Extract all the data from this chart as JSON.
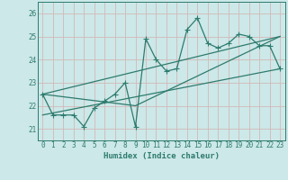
{
  "xlabel": "Humidex (Indice chaleur)",
  "xlim": [
    -0.5,
    23.5
  ],
  "ylim": [
    20.5,
    26.5
  ],
  "xticks": [
    0,
    1,
    2,
    3,
    4,
    5,
    6,
    7,
    8,
    9,
    10,
    11,
    12,
    13,
    14,
    15,
    16,
    17,
    18,
    19,
    20,
    21,
    22,
    23
  ],
  "yticks": [
    21,
    22,
    23,
    24,
    25,
    26
  ],
  "background_color": "#cce8e8",
  "grid_color": "#d4b8b8",
  "line_color": "#2e7b6e",
  "series1_x": [
    0,
    1,
    2,
    3,
    4,
    5,
    6,
    7,
    8,
    9,
    10,
    11,
    12,
    13,
    14,
    15,
    16,
    17,
    18,
    19,
    20,
    21,
    22,
    23
  ],
  "series1_y": [
    22.5,
    21.6,
    21.6,
    21.6,
    21.1,
    21.9,
    22.2,
    22.5,
    23.0,
    21.1,
    24.9,
    24.0,
    23.5,
    23.6,
    25.3,
    25.8,
    24.7,
    24.5,
    24.7,
    25.1,
    25.0,
    24.6,
    24.6,
    23.6
  ],
  "series2_x": [
    0,
    23
  ],
  "series2_y": [
    21.6,
    23.6
  ],
  "series3_x": [
    0,
    23
  ],
  "series3_y": [
    22.5,
    25.0
  ],
  "series4_x": [
    0,
    9,
    23
  ],
  "series4_y": [
    22.5,
    22.0,
    25.0
  ]
}
